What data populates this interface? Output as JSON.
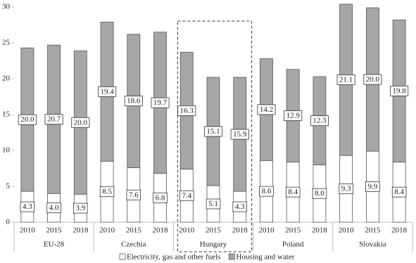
{
  "chart_data": {
    "type": "grouped-stacked-bar",
    "categories": [
      "2010",
      "2015",
      "2018",
      "2010",
      "2015",
      "2018",
      "2010",
      "2015",
      "2018",
      "2010",
      "2015",
      "2018",
      "2010",
      "2015",
      "2018"
    ],
    "groups": [
      "EU-28",
      "Czechia",
      "Hungary",
      "Poland",
      "Slovakia"
    ],
    "highlight_group": 2,
    "series": [
      {
        "name": "Electricity, gas and other fuels",
        "color": "#ffffff",
        "values": [
          4.3,
          4.0,
          3.9,
          8.5,
          7.6,
          6.8,
          7.4,
          5.1,
          4.3,
          8.6,
          8.4,
          8.0,
          9.3,
          9.9,
          8.4
        ],
        "value_labels": [
          "4.3",
          "4.0",
          "3.9",
          "8.5",
          "7.6",
          "6.8",
          "7.4",
          "5.1",
          "4.3",
          "8.6",
          "8.4",
          "8.0",
          "9.3",
          "9.9",
          "8.4"
        ]
      },
      {
        "name": "Housing and water",
        "color": "#a6a6a6",
        "values": [
          20.0,
          20.7,
          20.0,
          19.4,
          18.6,
          19.7,
          16.3,
          15.1,
          15.9,
          14.2,
          12.9,
          12.3,
          21.1,
          20.0,
          19.8
        ],
        "value_labels": [
          "20.0",
          "20.7",
          "20.0",
          "19.4",
          "18.6",
          "19.7",
          "16.3",
          "15.1",
          "15.9",
          "14.2",
          "12.9",
          "12.3",
          "21.1",
          "20.0",
          "19.8"
        ]
      }
    ],
    "ylim": [
      0,
      30
    ],
    "yticks": [
      0,
      5,
      10,
      15,
      20,
      25,
      30
    ],
    "grid": false,
    "legend": "bottom"
  }
}
